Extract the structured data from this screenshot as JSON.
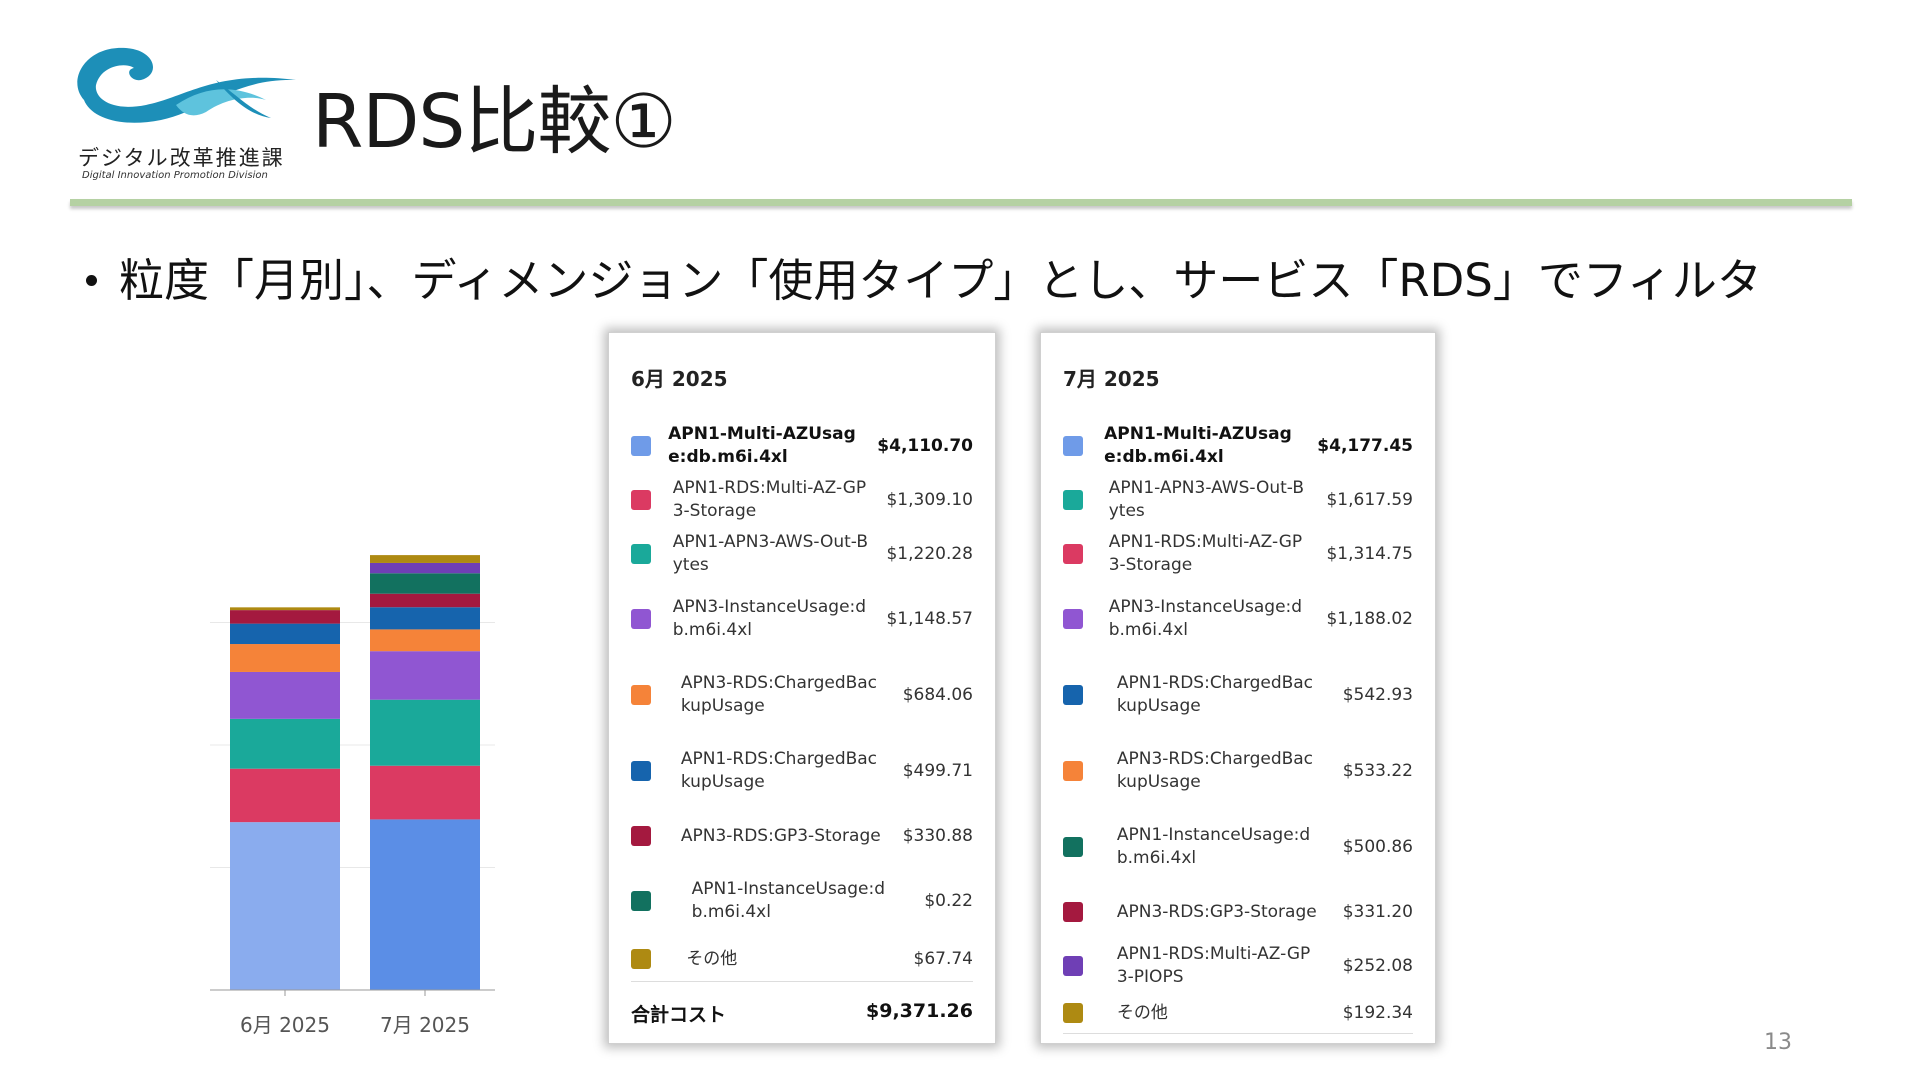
{
  "logo": {
    "org_jp": "デジタル改革推進課",
    "org_en": "Digital Innovation Promotion Division",
    "colors": {
      "wave_dark": "#1d8fb8",
      "wave_light": "#5ec3dd"
    }
  },
  "slide": {
    "title": "RDS比較①",
    "bullet": "粒度「月別」、ディメンジョン「使用タイプ」とし、サービス「RDS」でフィルタ",
    "page_number": "13",
    "rule_color": "#b5d1a3"
  },
  "chart_data": {
    "type": "bar",
    "stacked": true,
    "categories": [
      "6月 2025",
      "7月 2025"
    ],
    "series": [
      {
        "values": [
          4110.7,
          4177.45
        ],
        "color": "#8aacee"
      },
      {
        "values": [
          1309.1,
          1314.75
        ],
        "color": "#db3a62"
      },
      {
        "values": [
          1220.28,
          1617.59
        ],
        "color": "#1aa99a"
      },
      {
        "values": [
          1148.57,
          1188.02
        ],
        "color": "#9056d2"
      },
      {
        "values": [
          684.06,
          533.22
        ],
        "color": "#f58339"
      },
      {
        "values": [
          499.71,
          542.93
        ],
        "color": "#1664ad"
      },
      {
        "values": [
          330.88,
          331.2
        ],
        "color": "#a4193f"
      },
      {
        "values": [
          0.22,
          500.86
        ],
        "color": "#12715f"
      },
      {
        "values": [
          0,
          252.08
        ],
        "color": "#6f3fb5"
      },
      {
        "values": [
          67.74,
          192.34
        ],
        "color": "#ae8a12"
      }
    ],
    "bar_colors_month": [
      "#8aacee",
      "#5b8ee6"
    ],
    "grid": true,
    "ylim": [
      0,
      12000
    ]
  },
  "june": {
    "title": "6月 2025",
    "rows": [
      {
        "label": "APN1-Multi-AZUsage:db.m6i.4xl",
        "amount": "$4,110.70",
        "color": "#6f9be8",
        "bold": true
      },
      {
        "label": "APN1-RDS:Multi-AZ-GP3-Storage",
        "amount": "$1,309.10",
        "color": "#db3a62"
      },
      {
        "label": "APN1-APN3-AWS-Out-Bytes",
        "amount": "$1,220.28",
        "color": "#1aa99a"
      },
      {
        "label": "APN3-InstanceUsage:db.m6i.4xl",
        "amount": "$1,148.57",
        "color": "#9056d2"
      },
      {
        "label": "APN3-RDS:ChargedBackupUsage",
        "amount": "$684.06",
        "color": "#f58339"
      },
      {
        "label": "APN1-RDS:ChargedBackupUsage",
        "amount": "$499.71",
        "color": "#1664ad"
      },
      {
        "label": "APN3-RDS:GP3-Storage",
        "amount": "$330.88",
        "color": "#a4193f"
      },
      {
        "label": "APN1-InstanceUsage:db.m6i.4xl",
        "amount": "$0.22",
        "color": "#12715f"
      },
      {
        "label": "その他",
        "amount": "$67.74",
        "color": "#ae8a12"
      }
    ],
    "total_label": "合計コスト",
    "total_amount": "$9,371.26"
  },
  "july": {
    "title": "7月 2025",
    "rows": [
      {
        "label": "APN1-Multi-AZUsage:db.m6i.4xl",
        "amount": "$4,177.45",
        "color": "#6f9be8",
        "bold": true
      },
      {
        "label": "APN1-APN3-AWS-Out-Bytes",
        "amount": "$1,617.59",
        "color": "#1aa99a"
      },
      {
        "label": "APN1-RDS:Multi-AZ-GP3-Storage",
        "amount": "$1,314.75",
        "color": "#db3a62"
      },
      {
        "label": "APN3-InstanceUsage:db.m6i.4xl",
        "amount": "$1,188.02",
        "color": "#9056d2"
      },
      {
        "label": "APN1-RDS:ChargedBackupUsage",
        "amount": "$542.93",
        "color": "#1664ad"
      },
      {
        "label": "APN3-RDS:ChargedBackupUsage",
        "amount": "$533.22",
        "color": "#f58339"
      },
      {
        "label": "APN1-InstanceUsage:db.m6i.4xl",
        "amount": "$500.86",
        "color": "#12715f"
      },
      {
        "label": "APN3-RDS:GP3-Storage",
        "amount": "$331.20",
        "color": "#a4193f"
      },
      {
        "label": "APN1-RDS:Multi-AZ-GP3-PIOPS",
        "amount": "$252.08",
        "color": "#6f3fb5"
      },
      {
        "label": "その他",
        "amount": "$192.34",
        "color": "#ae8a12"
      }
    ]
  }
}
